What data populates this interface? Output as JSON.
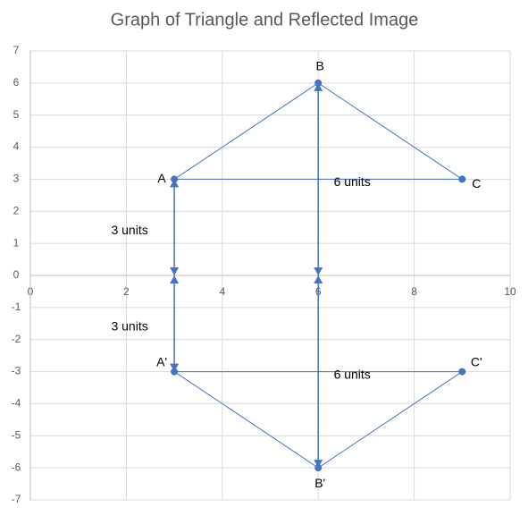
{
  "chart_data": {
    "type": "scatter",
    "title": "Graph of Triangle and Reflected Image",
    "xlim": [
      0,
      10
    ],
    "xticks": [
      0,
      2,
      4,
      6,
      8,
      10
    ],
    "ylim": [
      -7,
      7
    ],
    "yticks": [
      -7,
      -6,
      -5,
      -4,
      -3,
      -2,
      -1,
      0,
      1,
      2,
      3,
      4,
      5,
      6,
      7
    ],
    "grid": true,
    "color": "#4472c4",
    "series": [
      {
        "labels": [
          "A",
          "B",
          "C"
        ],
        "x": [
          3,
          6,
          9
        ],
        "y": [
          3,
          6,
          3
        ]
      },
      {
        "labels": [
          "A'",
          "B'",
          "C'"
        ],
        "x": [
          3,
          6,
          9
        ],
        "y": [
          -3,
          -6,
          -3
        ]
      }
    ],
    "arrows": [
      {
        "label": "3 units",
        "x": [
          3,
          3
        ],
        "y": [
          3,
          0
        ]
      },
      {
        "label": "3 units",
        "x": [
          3,
          3
        ],
        "y": [
          -3,
          0
        ]
      },
      {
        "label": "6 units",
        "x": [
          6,
          6
        ],
        "y": [
          6,
          0
        ]
      },
      {
        "label": "6 units",
        "x": [
          6,
          6
        ],
        "y": [
          -6,
          0
        ]
      }
    ]
  }
}
